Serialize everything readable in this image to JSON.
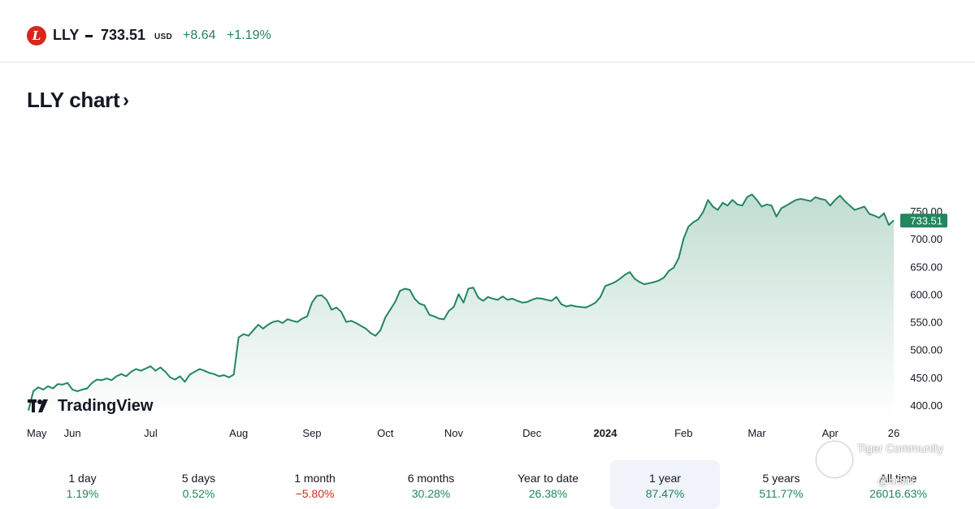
{
  "header": {
    "ticker": "LLY",
    "price": "733.51",
    "currency": "USD",
    "change": "+8.64",
    "change_percent": "+1.19%",
    "logo_letter": "L"
  },
  "title": "LLY chart",
  "title_arrow": "›",
  "watermark": {
    "brand": "TradingView",
    "community": "Tiger Community",
    "user": "@orsiri"
  },
  "colors": {
    "line": "#22865e",
    "positive": "#22865e",
    "negative": "#d7261e",
    "logo": "#d7261e"
  },
  "chart_data": {
    "type": "area",
    "last_price_label": "733.51",
    "y_ticks": [
      "750.00",
      "700.00",
      "650.00",
      "600.00",
      "550.00",
      "500.00",
      "450.00",
      "400.00"
    ],
    "y_tick_values": [
      750,
      700,
      650,
      600,
      550,
      500,
      450,
      400
    ],
    "x_ticks": [
      "May",
      "Jun",
      "Jul",
      "Aug",
      "Sep",
      "Oct",
      "Nov",
      "Dec",
      "2024",
      "Feb",
      "Mar",
      "Apr",
      "26"
    ],
    "x_tick_bold": [
      false,
      false,
      false,
      false,
      false,
      false,
      false,
      false,
      true,
      false,
      false,
      false,
      false
    ],
    "points": [
      [
        "May",
        390
      ],
      [
        "",
        425
      ],
      [
        "",
        432
      ],
      [
        "",
        428
      ],
      [
        "",
        434
      ],
      [
        "",
        430
      ],
      [
        "",
        438
      ],
      [
        "",
        437
      ],
      [
        "",
        440
      ],
      [
        "Jun",
        428
      ],
      [
        "",
        425
      ],
      [
        "",
        428
      ],
      [
        "",
        430
      ],
      [
        "",
        440
      ],
      [
        "",
        446
      ],
      [
        "",
        445
      ],
      [
        "",
        448
      ],
      [
        "",
        445
      ],
      [
        "",
        452
      ],
      [
        "",
        456
      ],
      [
        "",
        452
      ],
      [
        "",
        460
      ],
      [
        "",
        465
      ],
      [
        "",
        462
      ],
      [
        "",
        466
      ],
      [
        "Jul",
        470
      ],
      [
        "",
        462
      ],
      [
        "",
        468
      ],
      [
        "",
        460
      ],
      [
        "",
        450
      ],
      [
        "",
        446
      ],
      [
        "",
        452
      ],
      [
        "",
        442
      ],
      [
        "",
        455
      ],
      [
        "",
        460
      ],
      [
        "",
        465
      ],
      [
        "",
        462
      ],
      [
        "",
        458
      ],
      [
        "",
        456
      ],
      [
        "",
        452
      ],
      [
        "",
        454
      ],
      [
        "",
        450
      ],
      [
        "",
        455
      ],
      [
        "Aug",
        522
      ],
      [
        "",
        528
      ],
      [
        "",
        525
      ],
      [
        "",
        535
      ],
      [
        "",
        545
      ],
      [
        "",
        538
      ],
      [
        "",
        545
      ],
      [
        "",
        550
      ],
      [
        "",
        552
      ],
      [
        "",
        548
      ],
      [
        "",
        555
      ],
      [
        "",
        552
      ],
      [
        "",
        550
      ],
      [
        "",
        556
      ],
      [
        "",
        560
      ],
      [
        "Sep",
        585
      ],
      [
        "",
        597
      ],
      [
        "",
        598
      ],
      [
        "",
        590
      ],
      [
        "",
        572
      ],
      [
        "",
        576
      ],
      [
        "",
        568
      ],
      [
        "",
        550
      ],
      [
        "",
        552
      ],
      [
        "",
        548
      ],
      [
        "",
        543
      ],
      [
        "",
        538
      ],
      [
        "",
        530
      ],
      [
        "",
        525
      ],
      [
        "",
        535
      ],
      [
        "Oct",
        558
      ],
      [
        "",
        572
      ],
      [
        "",
        586
      ],
      [
        "",
        606
      ],
      [
        "",
        610
      ],
      [
        "",
        608
      ],
      [
        "",
        592
      ],
      [
        "",
        583
      ],
      [
        "",
        580
      ],
      [
        "",
        563
      ],
      [
        "",
        560
      ],
      [
        "",
        556
      ],
      [
        "",
        555
      ],
      [
        "",
        570
      ],
      [
        "Nov",
        577
      ],
      [
        "",
        600
      ],
      [
        "",
        585
      ],
      [
        "",
        610
      ],
      [
        "",
        612
      ],
      [
        "",
        594
      ],
      [
        "",
        588
      ],
      [
        "",
        595
      ],
      [
        "",
        592
      ],
      [
        "",
        590
      ],
      [
        "",
        596
      ],
      [
        "",
        590
      ],
      [
        "",
        592
      ],
      [
        "",
        588
      ],
      [
        "",
        585
      ],
      [
        "",
        586
      ],
      [
        "Dec",
        590
      ],
      [
        "",
        593
      ],
      [
        "",
        592
      ],
      [
        "",
        590
      ],
      [
        "",
        588
      ],
      [
        "",
        595
      ],
      [
        "",
        582
      ],
      [
        "",
        578
      ],
      [
        "",
        580
      ],
      [
        "",
        578
      ],
      [
        "",
        577
      ],
      [
        "",
        576
      ],
      [
        "",
        580
      ],
      [
        "",
        585
      ],
      [
        "",
        595
      ],
      [
        "2024",
        615
      ],
      [
        "",
        618
      ],
      [
        "",
        622
      ],
      [
        "",
        628
      ],
      [
        "",
        635
      ],
      [
        "",
        640
      ],
      [
        "",
        628
      ],
      [
        "",
        622
      ],
      [
        "",
        618
      ],
      [
        "",
        620
      ],
      [
        "",
        622
      ],
      [
        "",
        625
      ],
      [
        "",
        630
      ],
      [
        "",
        642
      ],
      [
        "",
        648
      ],
      [
        "",
        665
      ],
      [
        "Feb",
        700
      ],
      [
        "",
        722
      ],
      [
        "",
        730
      ],
      [
        "",
        735
      ],
      [
        "",
        748
      ],
      [
        "",
        770
      ],
      [
        "",
        758
      ],
      [
        "",
        752
      ],
      [
        "",
        765
      ],
      [
        "",
        760
      ],
      [
        "",
        770
      ],
      [
        "",
        762
      ],
      [
        "",
        760
      ],
      [
        "",
        775
      ],
      [
        "",
        780
      ],
      [
        "Mar",
        770
      ],
      [
        "",
        758
      ],
      [
        "",
        762
      ],
      [
        "",
        760
      ],
      [
        "",
        740
      ],
      [
        "",
        755
      ],
      [
        "",
        760
      ],
      [
        "",
        765
      ],
      [
        "",
        770
      ],
      [
        "",
        772
      ],
      [
        "",
        770
      ],
      [
        "",
        768
      ],
      [
        "",
        775
      ],
      [
        "",
        772
      ],
      [
        "",
        770
      ],
      [
        "Apr",
        760
      ],
      [
        "",
        770
      ],
      [
        "",
        778
      ],
      [
        "",
        768
      ],
      [
        "",
        760
      ],
      [
        "",
        752
      ],
      [
        "",
        755
      ],
      [
        "",
        758
      ],
      [
        "",
        745
      ],
      [
        "",
        742
      ],
      [
        "",
        738
      ],
      [
        "",
        746
      ],
      [
        "",
        725
      ],
      [
        "",
        733.51
      ]
    ]
  },
  "ranges": [
    {
      "label": "1 day",
      "value": "1.19%",
      "sign": "pos",
      "active": false
    },
    {
      "label": "5 days",
      "value": "0.52%",
      "sign": "pos",
      "active": false
    },
    {
      "label": "1 month",
      "value": "−5.80%",
      "sign": "neg",
      "active": false
    },
    {
      "label": "6 months",
      "value": "30.28%",
      "sign": "pos",
      "active": false
    },
    {
      "label": "Year to date",
      "value": "26.38%",
      "sign": "pos",
      "active": false
    },
    {
      "label": "1 year",
      "value": "87.47%",
      "sign": "pos",
      "active": true
    },
    {
      "label": "5 years",
      "value": "511.77%",
      "sign": "pos",
      "active": false
    },
    {
      "label": "All time",
      "value": "26016.63%",
      "sign": "pos",
      "active": false
    }
  ]
}
